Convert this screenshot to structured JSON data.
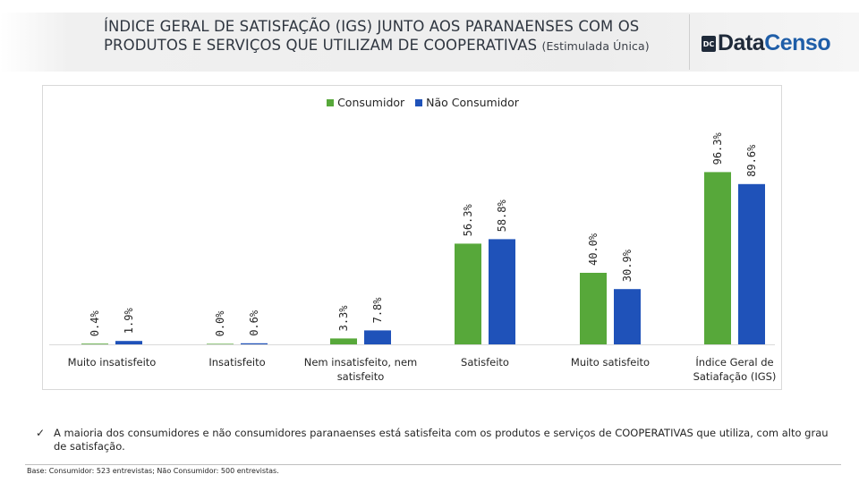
{
  "header": {
    "title_line1": "ÍNDICE GERAL DE SATISFAÇÃO (IGS) JUNTO AOS PARANAENSES COM OS",
    "title_line2": "PRODUTOS E SERVIÇOS QUE UTILIZAM DE COOPERATIVAS",
    "title_suffix": "(Estimulada Única)"
  },
  "logo": {
    "part1": "Data",
    "part2": "Censo",
    "mark": "DC"
  },
  "colors": {
    "consumidor": "#57a83a",
    "nao_consumidor": "#1f52b9"
  },
  "chart_data": {
    "type": "bar",
    "title": "ÍNDICE GERAL DE SATISFAÇÃO (IGS) JUNTO AOS PARANAENSES COM OS PRODUTOS E SERVIÇOS QUE UTILIZAM DE COOPERATIVAS (Estimulada Única)",
    "categories": [
      [
        "Muito insatisfeito"
      ],
      [
        "Insatisfeito"
      ],
      [
        "Nem insatisfeito, nem",
        "satisfeito"
      ],
      [
        "Satisfeito"
      ],
      [
        "Muito satisfeito"
      ],
      [
        "Índice Geral de",
        "Satiafação (IGS)"
      ]
    ],
    "series": [
      {
        "name": "Consumidor",
        "color": "#57a83a",
        "values": [
          0.4,
          0.0,
          3.3,
          56.3,
          40.0,
          96.3
        ],
        "labels": [
          "0.4%",
          "0.0%",
          "3.3%",
          "56.3%",
          "40.0%",
          "96.3%"
        ]
      },
      {
        "name": "Não Consumidor",
        "color": "#1f52b9",
        "values": [
          1.9,
          0.6,
          7.8,
          58.8,
          30.9,
          89.6
        ],
        "labels": [
          "1.9%",
          "0.6%",
          "7.8%",
          "58.8%",
          "30.9%",
          "89.6%"
        ]
      }
    ],
    "xlabel": "",
    "ylabel": "",
    "ylim": [
      0,
      100
    ],
    "grid": false,
    "legend": "top-center"
  },
  "note": {
    "check": "✓",
    "text": "A maioria dos consumidores e não consumidores paranaenses está satisfeita com os produtos e serviços de COOPERATIVAS que utiliza, com alto grau de satisfação."
  },
  "base": "Base: Consumidor: 523 entrevistas; Não Consumidor: 500 entrevistas."
}
